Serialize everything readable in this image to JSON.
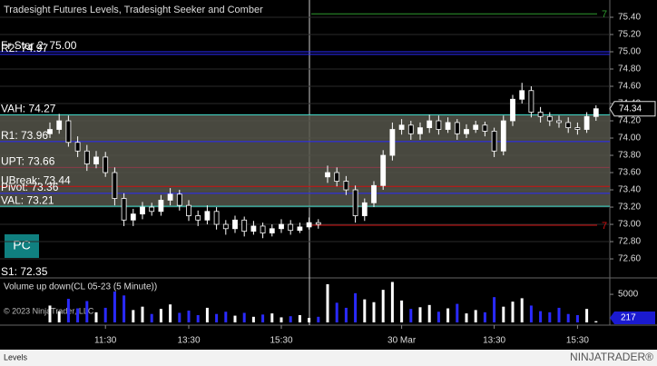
{
  "chart_data": {
    "type": "candlestick",
    "title": "Tradesight Futures Levels, Tradesight Seeker and Comber",
    "volume_title": "Volume up down(CL 05-23 (5 Minute))",
    "copyright": "© 2023 NinjaTrader, LLC",
    "tab": "Levels",
    "logo": "NINJATRADER®",
    "button": "PC",
    "categories": [
      null,
      null,
      null,
      null,
      null,
      null,
      "11:30",
      null,
      null,
      null,
      null,
      null,
      null,
      null,
      null,
      "13:30",
      null,
      null,
      null,
      null,
      null,
      null,
      null,
      null,
      null,
      "15:30",
      null,
      null,
      null,
      null,
      null,
      null,
      null,
      null,
      null,
      null,
      null,
      null,
      "30 Mar",
      null,
      null,
      null,
      null,
      null,
      null,
      null,
      null,
      null,
      "13:30",
      null,
      null,
      null,
      null,
      null,
      null,
      null,
      null,
      "15:30",
      null,
      null
    ],
    "open": [
      74.05,
      74.1,
      74.2,
      73.95,
      73.85,
      73.7,
      73.78,
      73.6,
      73.3,
      73.05,
      73.12,
      73.2,
      73.15,
      73.28,
      73.35,
      73.22,
      73.1,
      73.05,
      73.15,
      73.0,
      72.95,
      73.05,
      72.92,
      72.98,
      72.9,
      72.95,
      73.0,
      72.93,
      72.97,
      73.02,
      73.55,
      73.6,
      73.5,
      73.4,
      73.1,
      73.25,
      73.45,
      73.8,
      74.1,
      74.15,
      74.05,
      74.12,
      74.2,
      74.1,
      74.18,
      74.05,
      74.1,
      74.15,
      74.08,
      73.85,
      74.2,
      74.45,
      74.55,
      74.3,
      74.25,
      74.2,
      74.18,
      74.12,
      74.1,
      74.25
    ],
    "high": [
      74.18,
      74.28,
      74.26,
      74.02,
      73.92,
      73.85,
      73.84,
      73.66,
      73.36,
      73.18,
      73.26,
      73.25,
      73.34,
      73.42,
      73.4,
      73.28,
      73.16,
      73.22,
      73.2,
      73.05,
      73.1,
      73.09,
      73.04,
      73.02,
      73.0,
      73.06,
      73.05,
      73.02,
      73.08,
      73.06,
      73.68,
      73.66,
      73.56,
      73.45,
      73.3,
      73.5,
      73.86,
      74.18,
      74.22,
      74.2,
      74.18,
      74.27,
      74.26,
      74.24,
      74.22,
      74.16,
      74.2,
      74.19,
      74.12,
      74.26,
      74.5,
      74.64,
      74.6,
      74.36,
      74.3,
      74.26,
      74.24,
      74.18,
      74.3,
      74.38
    ],
    "low": [
      74.0,
      74.05,
      73.9,
      73.78,
      73.62,
      73.65,
      73.55,
      73.22,
      72.98,
      72.98,
      73.06,
      73.1,
      73.1,
      73.22,
      73.16,
      73.04,
      72.98,
      73.0,
      72.94,
      72.88,
      72.9,
      72.86,
      72.88,
      72.84,
      72.86,
      72.9,
      72.88,
      72.9,
      72.94,
      72.95,
      73.48,
      73.44,
      73.34,
      73.02,
      73.04,
      73.2,
      73.4,
      73.74,
      74.04,
      73.98,
      73.98,
      74.06,
      74.04,
      74.06,
      73.98,
      74.0,
      74.06,
      74.02,
      73.78,
      73.8,
      74.14,
      74.4,
      74.24,
      74.18,
      74.14,
      74.12,
      74.06,
      74.04,
      74.06,
      74.2
    ],
    "close": [
      74.1,
      74.2,
      73.95,
      73.85,
      73.7,
      73.78,
      73.6,
      73.3,
      73.05,
      73.12,
      73.2,
      73.15,
      73.28,
      73.35,
      73.22,
      73.1,
      73.05,
      73.15,
      73.0,
      72.95,
      73.05,
      72.92,
      72.98,
      72.9,
      72.95,
      73.0,
      72.93,
      72.97,
      73.02,
      73.0,
      73.6,
      73.5,
      73.4,
      73.1,
      73.25,
      73.45,
      73.8,
      74.1,
      74.15,
      74.05,
      74.12,
      74.2,
      74.1,
      74.18,
      74.05,
      74.1,
      74.15,
      74.08,
      73.85,
      74.2,
      74.45,
      74.55,
      74.3,
      74.25,
      74.2,
      74.18,
      74.12,
      74.1,
      74.25,
      74.34
    ],
    "volume": [
      3000,
      2000,
      4200,
      2500,
      3800,
      1800,
      2600,
      5500,
      4800,
      2200,
      2800,
      1500,
      2400,
      3200,
      1700,
      2100,
      1300,
      2600,
      1500,
      1900,
      1200,
      1700,
      1000,
      1400,
      1600,
      900,
      1100,
      1300,
      800,
      1000,
      6800,
      3500,
      2600,
      5200,
      4100,
      3600,
      5800,
      7200,
      3900,
      2400,
      2700,
      3100,
      1900,
      2500,
      3300,
      1600,
      2200,
      1800,
      4500,
      2800,
      3700,
      4300,
      3000,
      2000,
      1800,
      2600,
      1500,
      1300,
      2400,
      217
    ],
    "ylim": [
      72.39,
      75.6
    ],
    "yticks": [
      {
        "value": 75.4,
        "label": "75.40"
      },
      {
        "value": 75.2,
        "label": "75.20"
      },
      {
        "value": 75.0,
        "label": "75.00"
      },
      {
        "value": 74.8,
        "label": "74.80"
      },
      {
        "value": 74.6,
        "label": "74.60"
      },
      {
        "value": 74.4,
        "label": "74.40"
      },
      {
        "value": 74.2,
        "label": "74.20"
      },
      {
        "value": 74.0,
        "label": "74.00"
      },
      {
        "value": 73.8,
        "label": "73.80"
      },
      {
        "value": 73.6,
        "label": "73.60"
      },
      {
        "value": 73.4,
        "label": "73.40"
      },
      {
        "value": 73.2,
        "label": "73.20"
      },
      {
        "value": 73.0,
        "label": "73.00"
      },
      {
        "value": 72.8,
        "label": "72.80"
      },
      {
        "value": 72.6,
        "label": "72.60"
      }
    ],
    "vlim": [
      0,
      7600
    ],
    "vticks": [
      5000
    ],
    "last_price": {
      "value": 74.34,
      "label": "74.34"
    },
    "last_volume": 217,
    "levels": [
      {
        "label": "Fr Star 2: 75.00",
        "value": 75.0,
        "color": "#2a2aff"
      },
      {
        "label": "R2: 74.97",
        "value": 74.97,
        "color": "#2a2aff"
      },
      {
        "label": "VAH: 74.27",
        "value": 74.27,
        "color": "#40e0d0"
      },
      {
        "label": "R1: 73.96",
        "value": 73.96,
        "color": "#2a2aff"
      },
      {
        "label": "UPT: 73.66",
        "value": 73.66,
        "color": "#8b3a4a"
      },
      {
        "label": "UBreak: 73.44",
        "value": 73.44,
        "color": "#d01010"
      },
      {
        "label": "Pivot: 73.36",
        "value": 73.36,
        "color": "#2a2aff"
      },
      {
        "label": "VAL: 73.21",
        "value": 73.21,
        "color": "#40e0d0"
      },
      {
        "label": "S1: 72.35",
        "value": 72.35,
        "color": "#2a2aff"
      }
    ],
    "session_lines": [
      {
        "label": "7",
        "value": 75.44,
        "color": "#2e9a2e"
      },
      {
        "label": "7",
        "value": 72.99,
        "color": "#d01010"
      }
    ],
    "grid": true
  }
}
